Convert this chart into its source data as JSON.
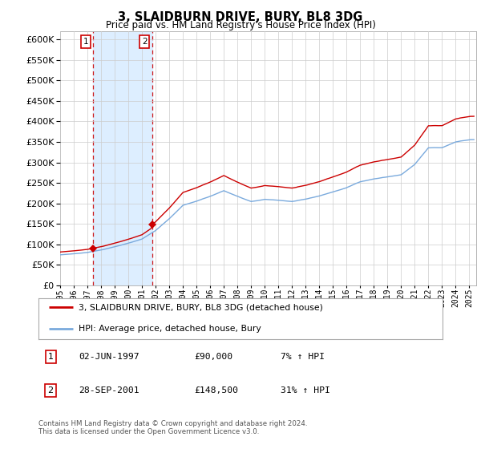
{
  "title": "3, SLAIDBURN DRIVE, BURY, BL8 3DG",
  "subtitle": "Price paid vs. HM Land Registry's House Price Index (HPI)",
  "ylim": [
    0,
    620000
  ],
  "yticks": [
    0,
    50000,
    100000,
    150000,
    200000,
    250000,
    300000,
    350000,
    400000,
    450000,
    500000,
    550000,
    600000
  ],
  "xlim_start": 1995.0,
  "xlim_end": 2025.5,
  "purchase1_date": 1997.42,
  "purchase1_price": 90000,
  "purchase2_date": 2001.74,
  "purchase2_price": 148500,
  "legend_house": "3, SLAIDBURN DRIVE, BURY, BL8 3DG (detached house)",
  "legend_hpi": "HPI: Average price, detached house, Bury",
  "footer": "Contains HM Land Registry data © Crown copyright and database right 2024.\nThis data is licensed under the Open Government Licence v3.0.",
  "house_color": "#cc0000",
  "hpi_color": "#7aaadd",
  "plot_bg": "#ffffff",
  "grid_color": "#cccccc",
  "shade_color": "#ddeeff"
}
